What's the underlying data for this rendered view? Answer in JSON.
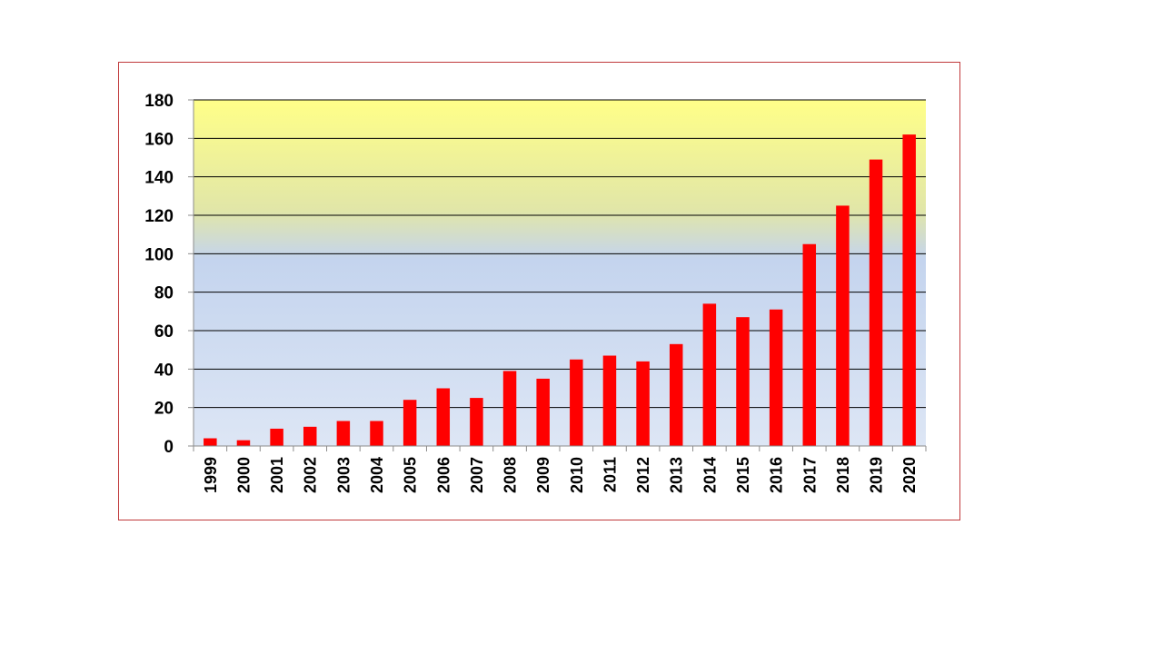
{
  "chart_data": {
    "type": "bar",
    "categories": [
      "1999",
      "2000",
      "2001",
      "2002",
      "2003",
      "2004",
      "2005",
      "2006",
      "2007",
      "2008",
      "2009",
      "2010",
      "2011",
      "2012",
      "2013",
      "2014",
      "2015",
      "2016",
      "2017",
      "2018",
      "2019",
      "2020"
    ],
    "values": [
      4,
      3,
      9,
      10,
      13,
      13,
      24,
      30,
      25,
      39,
      35,
      45,
      47,
      44,
      53,
      74,
      67,
      71,
      105,
      125,
      149,
      162
    ],
    "ylim": [
      0,
      180
    ],
    "yticks": [
      0,
      20,
      40,
      60,
      80,
      100,
      120,
      140,
      160,
      180
    ],
    "grid": true,
    "legend": "none",
    "colors": {
      "bar": "#ff0000",
      "gridline": "#000000",
      "frame_border": "#c0393b",
      "plot_top": "#ffff88",
      "plot_mid": "#c4d4ee",
      "plot_bottom": "#dde6f5"
    }
  }
}
